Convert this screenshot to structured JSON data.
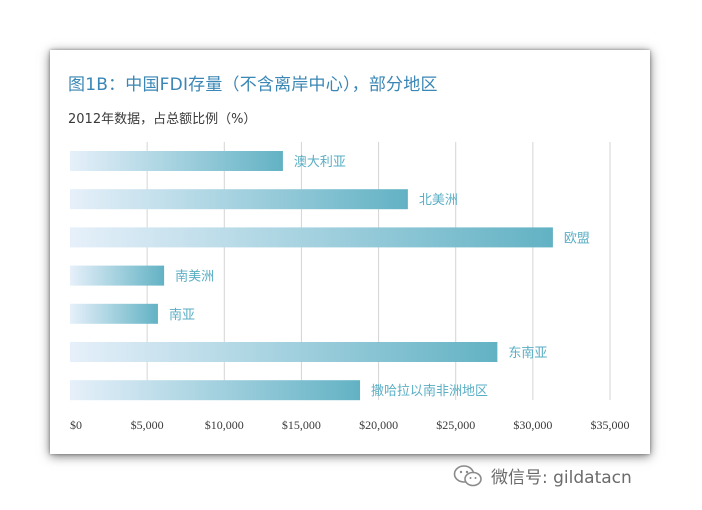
{
  "chart_data": {
    "type": "bar",
    "orientation": "horizontal",
    "title": "图1B：中国FDI存量（不含离岸中心），部分地区",
    "subtitle": "2012年数据，占总额比例（%）",
    "categories": [
      "澳大利亚",
      "北美洲",
      "欧盟",
      "南美洲",
      "南亚",
      "东南亚",
      "撒哈拉以南非洲地区"
    ],
    "values": [
      13800,
      21900,
      31300,
      6100,
      5700,
      27700,
      18800
    ],
    "x_ticks": [
      "$0",
      "$5,000",
      "$10,000",
      "$15,000",
      "$20,000",
      "$25,000",
      "$30,000",
      "$35,000"
    ],
    "xlim": [
      0,
      35000
    ],
    "grid": true,
    "colors": {
      "bar_start": "#e6f0fa",
      "bar_end": "#62b2c4",
      "label": "#5aaec4",
      "title": "#3a86b5"
    }
  },
  "watermark": {
    "text": "微信号: gildatacn",
    "icon": "wechat-icon"
  }
}
